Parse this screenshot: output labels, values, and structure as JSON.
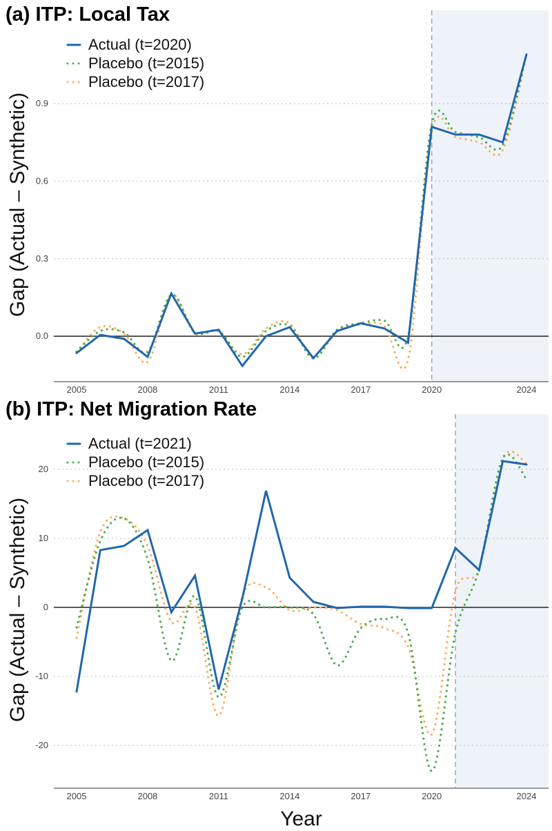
{
  "chart_data": [
    {
      "type": "line",
      "title": "(a) ITP: Local Tax",
      "xlabel": "",
      "ylabel": "Gap (Actual – Synthetic)",
      "x": [
        2005,
        2006,
        2007,
        2008,
        2009,
        2010,
        2011,
        2012,
        2013,
        2014,
        2015,
        2016,
        2017,
        2018,
        2019,
        2020,
        2021,
        2022,
        2023,
        2024
      ],
      "xticks": [
        2005,
        2008,
        2011,
        2014,
        2017,
        2020,
        2024
      ],
      "yticks": [
        0.0,
        0.3,
        0.6,
        0.9
      ],
      "ytick_labels": [
        "0.0",
        "0.3",
        "0.6",
        "0.9"
      ],
      "ylim": [
        -0.176,
        1.194
      ],
      "treatment_year": 2020,
      "grid": "horizontal dotted",
      "legend": "top-left",
      "series": [
        {
          "name": "Actual (t=2020)",
          "color": "#2166ac",
          "style": "solid",
          "values": [
            -0.065,
            0.005,
            -0.01,
            -0.08,
            0.165,
            0.01,
            0.025,
            -0.115,
            0.0,
            0.035,
            -0.085,
            0.02,
            0.05,
            0.03,
            -0.025,
            0.81,
            0.78,
            0.78,
            0.75,
            1.09
          ]
        },
        {
          "name": "Placebo (t=2015)",
          "color": "#4daf4a",
          "style": "dotted",
          "values": [
            -0.06,
            0.02,
            0.015,
            -0.06,
            0.16,
            0.015,
            0.02,
            -0.08,
            0.02,
            0.04,
            -0.085,
            0.025,
            0.05,
            0.06,
            0.0,
            0.82,
            0.79,
            0.77,
            0.74,
            1.09
          ]
        },
        {
          "name": "Placebo (t=2017)",
          "color": "#fdae61",
          "style": "dotted",
          "values": [
            -0.06,
            0.035,
            0.01,
            -0.1,
            0.16,
            0.01,
            0.02,
            -0.07,
            0.03,
            0.05,
            -0.085,
            0.02,
            0.045,
            0.04,
            -0.09,
            0.79,
            0.77,
            0.75,
            0.72,
            1.09
          ]
        }
      ]
    },
    {
      "type": "line",
      "title": "(b) ITP: Net Migration Rate",
      "xlabel": "Year",
      "ylabel": "Gap (Actual – Synthetic)",
      "x": [
        2005,
        2006,
        2007,
        2008,
        2009,
        2010,
        2011,
        2012,
        2013,
        2014,
        2015,
        2016,
        2017,
        2018,
        2019,
        2020,
        2021,
        2022,
        2023,
        2024
      ],
      "xticks": [
        2005,
        2008,
        2011,
        2014,
        2017,
        2020,
        2024
      ],
      "yticks": [
        -20,
        -10,
        0,
        10,
        20
      ],
      "ytick_labels": [
        "-20",
        "-10",
        "0",
        "10",
        "20"
      ],
      "ylim": [
        -26.2,
        25.5
      ],
      "treatment_year": 2021,
      "grid": "horizontal dotted",
      "legend": "top-left",
      "series": [
        {
          "name": "Actual (t=2021)",
          "color": "#2166ac",
          "style": "solid",
          "values": [
            -12.2,
            8.3,
            8.9,
            11.2,
            -0.7,
            4.6,
            -11.9,
            1.3,
            16.9,
            4.3,
            0.8,
            -0.1,
            0.1,
            0.1,
            -0.1,
            -0.1,
            8.6,
            5.4,
            21.2,
            20.7
          ]
        },
        {
          "name": "Placebo (t=2015)",
          "color": "#4daf4a",
          "style": "dotted",
          "values": [
            -2.9,
            9.6,
            12.9,
            7.0,
            -7.7,
            1.6,
            -13.0,
            0.0,
            0.0,
            0.0,
            -1.0,
            -8.4,
            -3.0,
            -1.7,
            -3.7,
            -23.7,
            -3.7,
            5.6,
            21.6,
            18.6
          ]
        },
        {
          "name": "Placebo (t=2017)",
          "color": "#fdae61",
          "style": "dotted",
          "values": [
            -4.4,
            10.9,
            12.9,
            8.9,
            -2.1,
            0.0,
            -15.7,
            1.6,
            2.9,
            -0.4,
            0.0,
            -0.4,
            -2.4,
            -3.0,
            -5.7,
            -18.4,
            2.3,
            5.6,
            21.6,
            20.9
          ]
        }
      ]
    }
  ]
}
